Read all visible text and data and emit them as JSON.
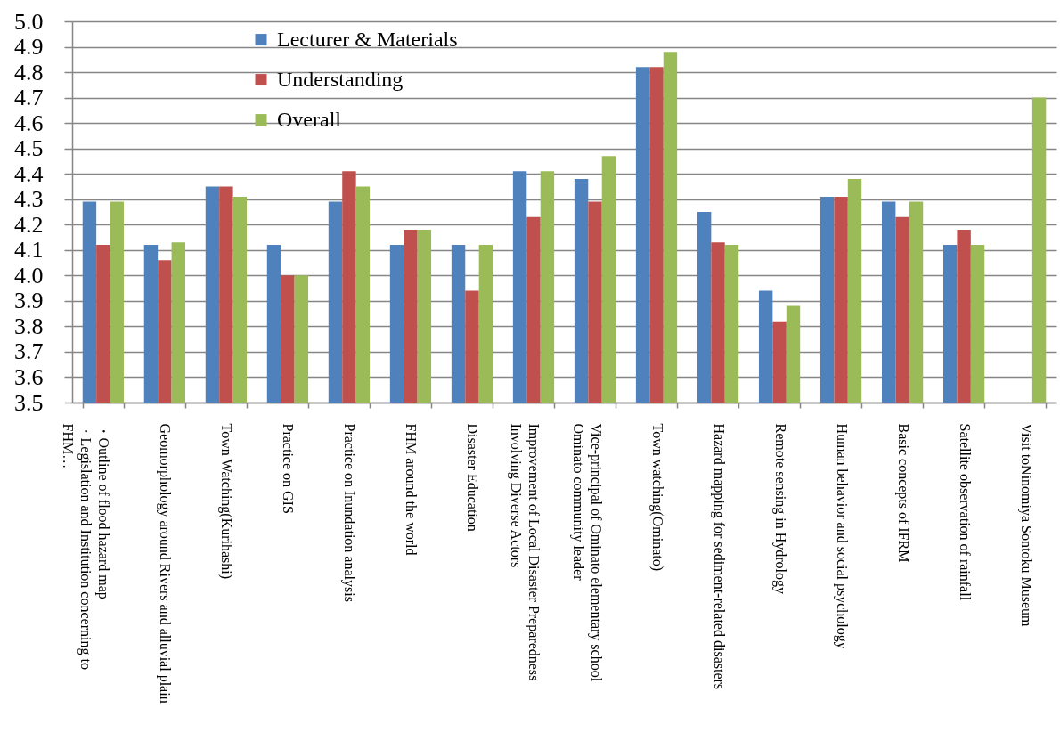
{
  "chart_data": {
    "type": "bar",
    "categories": [
      "・Outline of flood hazard map\n・Legislation and Institution concerning to\nFHM…",
      "Geomorphology around Rivers and alluvial plain",
      "Town Watching(Kurihashi)",
      "Practice on GIS",
      "Practice on Inundation analysis",
      "FHM around the world",
      "Disaster Education",
      "Improvement of Local Disaster Preparedness\nInvolving Diverse Actors",
      "Vice-principal of Ominato elementary school\nOminato community leader",
      "Town watching(Ominato)",
      "Hazard mapping for sediment-related disasters",
      "Remote sensing in Hydrology",
      "Human behavior and social psychology",
      "Basic concepts of IFRM",
      "Satellite observation of rainfall",
      "Visit toNinomiya Sontoku Museum"
    ],
    "series": [
      {
        "name": "Lecturer & Materials",
        "color": "#4f81bd",
        "values": [
          4.29,
          4.12,
          4.35,
          4.12,
          4.29,
          4.12,
          4.12,
          4.41,
          4.38,
          4.82,
          4.25,
          3.94,
          4.31,
          4.29,
          4.12,
          null
        ]
      },
      {
        "name": "Understanding",
        "color": "#c0504d",
        "values": [
          4.12,
          4.06,
          4.35,
          4.0,
          4.41,
          4.18,
          3.94,
          4.23,
          4.29,
          4.82,
          4.13,
          3.82,
          4.31,
          4.23,
          4.18,
          null
        ]
      },
      {
        "name": "Overall",
        "color": "#9bbb59",
        "values": [
          4.29,
          4.13,
          4.31,
          4.0,
          4.35,
          4.18,
          4.12,
          4.41,
          4.47,
          4.88,
          4.12,
          3.88,
          4.38,
          4.29,
          4.12,
          4.7
        ]
      }
    ],
    "ylim": [
      3.5,
      5.0
    ],
    "yticks": [
      3.5,
      3.6,
      3.7,
      3.8,
      3.9,
      {
        "value": 4,
        "label": "4.0"
      },
      4.1,
      4.2,
      4.3,
      4.4,
      4.5,
      4.6,
      4.7,
      4.8,
      4.9,
      {
        "value": 5,
        "label": "5.0"
      }
    ],
    "grid": "y",
    "legend": "top left"
  }
}
